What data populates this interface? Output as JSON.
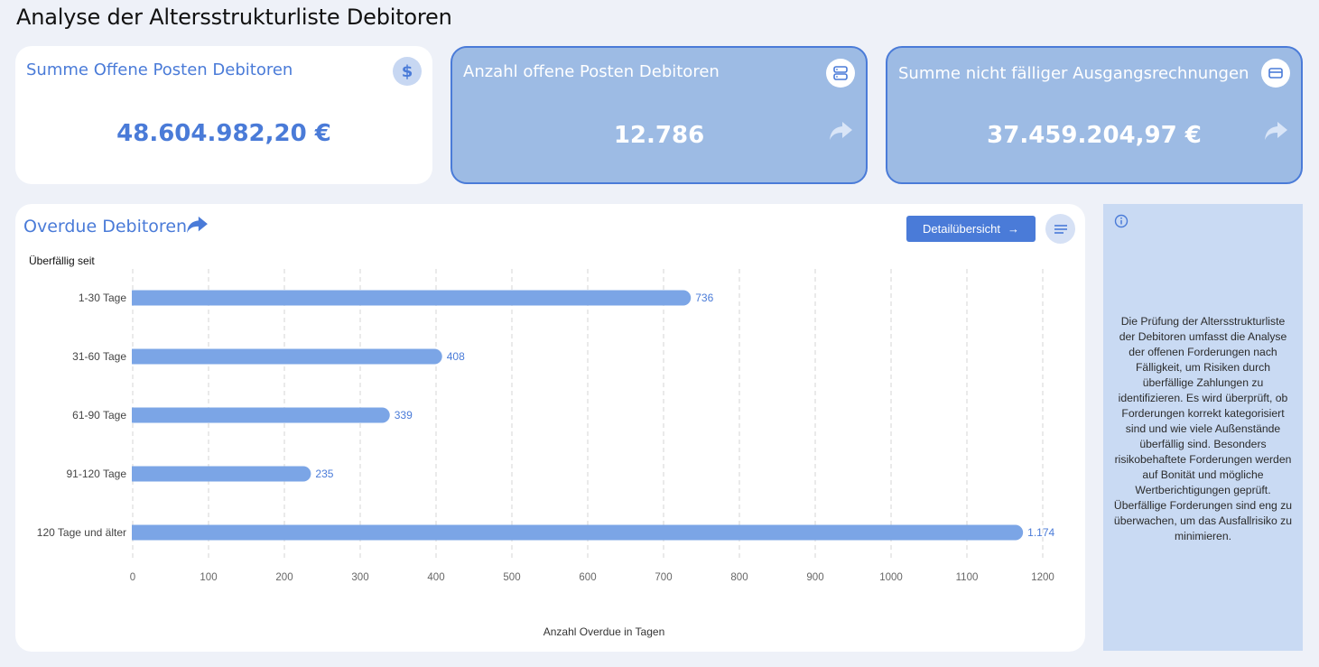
{
  "page": {
    "title": "Analyse der Altersstrukturliste Debitoren"
  },
  "kpis": {
    "sum_open": {
      "title": "Summe Offene Posten Debitoren",
      "value": "48.604.982,20 €",
      "icon": "dollar-icon",
      "icon_glyph": "$"
    },
    "count_open": {
      "title": "Anzahl offene Posten Debitoren",
      "value": "12.786",
      "icon": "server-icon"
    },
    "sum_not_due": {
      "title": "Summe nicht fälliger Ausgangsrechnungen",
      "value": "37.459.204,97 €",
      "icon": "credit-card-icon"
    }
  },
  "chart_card": {
    "title": "Overdue Debitoren",
    "detail_button": "Detailübersicht",
    "detail_arrow": "→"
  },
  "chart_data": {
    "type": "bar",
    "orientation": "horizontal",
    "categories": [
      "1-30 Tage",
      "31-60 Tage",
      "61-90 Tage",
      "91-120 Tage",
      "120 Tage und älter"
    ],
    "values": [
      736,
      408,
      339,
      235,
      1174
    ],
    "value_labels": [
      "736",
      "408",
      "339",
      "235",
      "1.174"
    ],
    "ylabel": "Überfällig seit",
    "xlabel": "Anzahl Overdue in Tagen",
    "xlim": [
      0,
      1200
    ],
    "xticks": [
      0,
      100,
      200,
      300,
      400,
      500,
      600,
      700,
      800,
      900,
      1000,
      1100,
      1200
    ],
    "grid": "vertical-dashed",
    "bar_color": "#7ba5e6",
    "label_color": "#4a7bd8"
  },
  "info": {
    "text": "Die Prüfung der Altersstrukturliste der Debitoren umfasst die Analyse der offenen Forderungen nach Fälligkeit, um Risiken durch überfällige Zahlungen zu identifizieren. Es wird überprüft, ob Forderungen korrekt kategorisiert sind und wie viele Außenstände überfällig sind. Besonders risikobehaftete Forderungen werden auf Bonität und mögliche Wertberichtigungen geprüft. Überfällige Forderungen sind eng zu überwachen, um das Ausfallrisiko zu minimieren."
  },
  "colors": {
    "accent": "#4a7bd8",
    "kpi_blue": "#9dbbe4",
    "info_bg": "#c9daf3",
    "page_bg": "#eef1f8"
  }
}
